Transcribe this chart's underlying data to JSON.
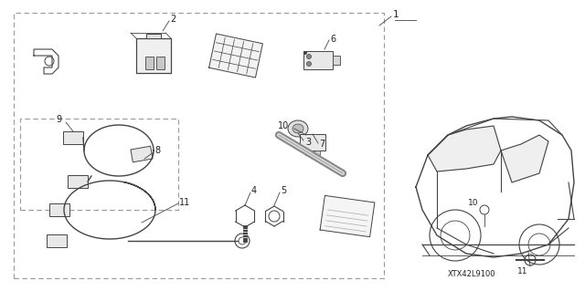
{
  "bg_color": "#ffffff",
  "line_color": "#444444",
  "dashed_color": "#999999",
  "text_color": "#222222",
  "fig_width": 6.4,
  "fig_height": 3.19,
  "dpi": 100,
  "diagram_code": "XTX42L9100"
}
